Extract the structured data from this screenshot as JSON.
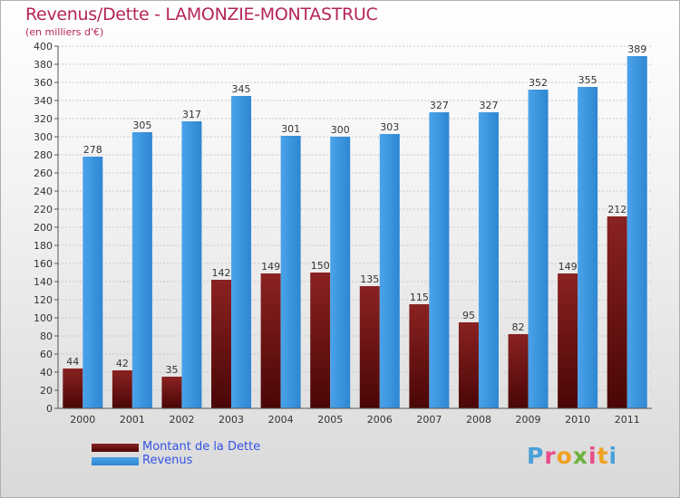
{
  "header": {
    "title": "Revenus/Dette - LAMONZIE-MONTASTRUC",
    "subtitle": "(en milliers d'€)"
  },
  "colors": {
    "debt": "#7a1a1a",
    "debt_dark": "#4a0606",
    "revenue": "#3f99e2",
    "revenue_dark": "#2c7fc9",
    "title": "#b5245a",
    "legend_text": "#3553e8"
  },
  "legend": {
    "debt_label": "Montant de la Dette",
    "revenue_label": "Revenus"
  },
  "logo": {
    "letters": [
      "P",
      "r",
      "o",
      "x",
      "i",
      "t",
      "i"
    ],
    "colors": [
      "#4aa0d8",
      "#e94c8a",
      "#f0a020",
      "#6bb33a",
      "#e94c8a",
      "#f0a020",
      "#4aa0d8"
    ]
  },
  "chart_data": {
    "type": "bar",
    "title": "Revenus/Dette - LAMONZIE-MONTASTRUC",
    "subtitle": "(en milliers d'€)",
    "categories": [
      "2000",
      "2001",
      "2002",
      "2003",
      "2004",
      "2005",
      "2006",
      "2007",
      "2008",
      "2009",
      "2010",
      "2011"
    ],
    "series": [
      {
        "name": "Montant de la Dette",
        "values": [
          44,
          42,
          35,
          142,
          149,
          150,
          135,
          115,
          95,
          82,
          149,
          212
        ]
      },
      {
        "name": "Revenus",
        "values": [
          278,
          305,
          317,
          345,
          301,
          300,
          303,
          327,
          327,
          352,
          355,
          389
        ]
      }
    ],
    "ylim": [
      0,
      400
    ],
    "ytick_step": 20,
    "grid": "horizontal-dashed",
    "legend_position": "bottom-left"
  }
}
